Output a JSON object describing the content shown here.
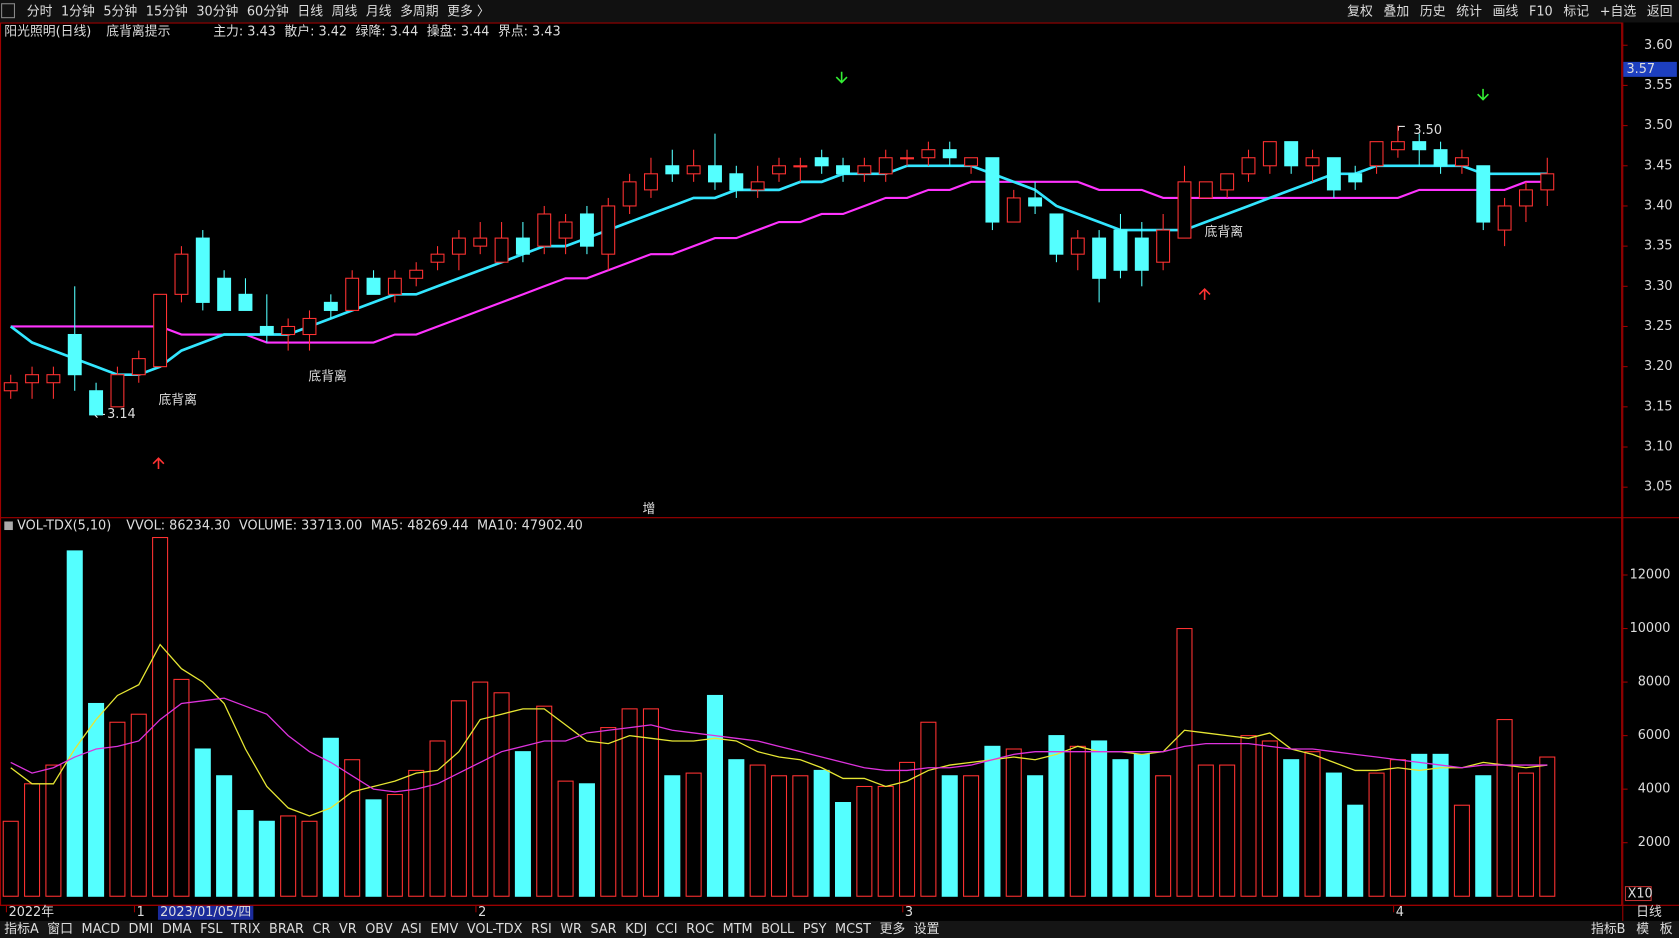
{
  "top_toolbar": {
    "left": [
      {
        "label": "分时"
      },
      {
        "label": "1分钟"
      },
      {
        "label": "5分钟"
      },
      {
        "label": "15分钟"
      },
      {
        "label": "30分钟"
      },
      {
        "label": "60分钟"
      },
      {
        "label": "日线",
        "active": true
      },
      {
        "label": "周线"
      },
      {
        "label": "月线"
      },
      {
        "label": "多周期"
      },
      {
        "label": "更多 〉"
      }
    ],
    "right": [
      {
        "label": "复权"
      },
      {
        "label": "叠加"
      },
      {
        "label": "历史"
      },
      {
        "label": "统计"
      },
      {
        "label": "画线"
      },
      {
        "label": "F10"
      },
      {
        "label": "标记"
      },
      {
        "label": "+自选"
      },
      {
        "label": "返回"
      }
    ]
  },
  "bottom_toolbar": {
    "left": [
      {
        "label": "指标A"
      },
      {
        "label": "窗口"
      },
      {
        "label": "MACD"
      },
      {
        "label": "DMI"
      },
      {
        "label": "DMA"
      },
      {
        "label": "FSL"
      },
      {
        "label": "TRIX"
      },
      {
        "label": "BRAR"
      },
      {
        "label": "CR"
      },
      {
        "label": "VR"
      },
      {
        "label": "OBV"
      },
      {
        "label": "ASI"
      },
      {
        "label": "EMV"
      },
      {
        "label": "VOL-TDX",
        "active": true
      },
      {
        "label": "RSI"
      },
      {
        "label": "WR"
      },
      {
        "label": "SAR"
      },
      {
        "label": "KDJ"
      },
      {
        "label": "CCI"
      },
      {
        "label": "ROC"
      },
      {
        "label": "MTM"
      },
      {
        "label": "BOLL"
      },
      {
        "label": "PSY"
      },
      {
        "label": "MCST"
      },
      {
        "label": "更多"
      },
      {
        "label": "设置"
      }
    ],
    "right": [
      {
        "label": "指标B"
      },
      {
        "label": "模"
      },
      {
        "label": "板"
      }
    ],
    "period": "日线"
  },
  "chart_data": [
    {
      "type": "candlestick",
      "title": "阳光照明(日线)",
      "subtitle": "底背离提示",
      "indicators": [
        {
          "text": "主力: 3.43",
          "color": "#ff3030"
        },
        {
          "text": "散户: 3.42",
          "color": "#ffffff"
        },
        {
          "text": "绿降: 3.44",
          "color": "#33dd33"
        },
        {
          "text": "操盘: 3.44",
          "color": "#44eeee"
        },
        {
          "text": "界点: 3.43",
          "color": "#ff44ff"
        }
      ],
      "categories": [
        "2022年",
        null,
        null,
        null,
        null,
        null,
        "1",
        "2023/01/05/四",
        null,
        null,
        null,
        null,
        null,
        null,
        null,
        null,
        null,
        null,
        null,
        null,
        null,
        null,
        "2",
        null,
        null,
        null,
        null,
        null,
        null,
        null,
        null,
        null,
        null,
        null,
        null,
        null,
        null,
        null,
        null,
        null,
        null,
        null,
        "3",
        null,
        null,
        null,
        null,
        null,
        null,
        null,
        null,
        null,
        null,
        null,
        null,
        null,
        null,
        null,
        null,
        null,
        null,
        null,
        null,
        null,
        null,
        "4",
        null,
        null,
        null,
        null,
        null,
        null,
        null
      ],
      "open": [
        3.17,
        3.18,
        3.18,
        3.24,
        3.17,
        3.15,
        3.19,
        3.2,
        3.29,
        3.36,
        3.31,
        3.29,
        3.25,
        3.24,
        3.24,
        3.28,
        3.27,
        3.31,
        3.29,
        3.31,
        3.33,
        3.34,
        3.35,
        3.33,
        3.36,
        3.35,
        3.36,
        3.39,
        3.34,
        3.4,
        3.42,
        3.45,
        3.44,
        3.45,
        3.44,
        3.42,
        3.44,
        3.45,
        3.46,
        3.45,
        3.44,
        3.44,
        3.46,
        3.46,
        3.47,
        3.45,
        3.46,
        3.38,
        3.41,
        3.39,
        3.34,
        3.36,
        3.37,
        3.36,
        3.33,
        3.36,
        3.41,
        3.42,
        3.44,
        3.45,
        3.48,
        3.45,
        3.46,
        3.44,
        3.45,
        3.47,
        3.48,
        3.47,
        3.45,
        3.45,
        3.37,
        3.4,
        3.42
      ],
      "high": [
        3.19,
        3.2,
        3.2,
        3.3,
        3.18,
        3.2,
        3.22,
        3.29,
        3.35,
        3.37,
        3.32,
        3.31,
        3.29,
        3.26,
        3.27,
        3.29,
        3.32,
        3.32,
        3.32,
        3.33,
        3.35,
        3.37,
        3.38,
        3.38,
        3.38,
        3.4,
        3.39,
        3.4,
        3.41,
        3.44,
        3.46,
        3.47,
        3.47,
        3.49,
        3.45,
        3.45,
        3.46,
        3.46,
        3.47,
        3.46,
        3.46,
        3.47,
        3.47,
        3.48,
        3.48,
        3.46,
        3.46,
        3.42,
        3.43,
        3.39,
        3.37,
        3.37,
        3.39,
        3.38,
        3.39,
        3.45,
        3.43,
        3.44,
        3.47,
        3.48,
        3.48,
        3.47,
        3.46,
        3.45,
        3.48,
        3.5,
        3.49,
        3.48,
        3.47,
        3.45,
        3.41,
        3.43,
        3.46
      ],
      "low": [
        3.16,
        3.16,
        3.16,
        3.17,
        3.14,
        3.15,
        3.18,
        3.2,
        3.28,
        3.27,
        3.27,
        3.27,
        3.23,
        3.22,
        3.22,
        3.26,
        3.27,
        3.29,
        3.28,
        3.3,
        3.32,
        3.32,
        3.34,
        3.33,
        3.33,
        3.34,
        3.34,
        3.34,
        3.32,
        3.39,
        3.41,
        3.43,
        3.43,
        3.42,
        3.41,
        3.41,
        3.43,
        3.43,
        3.44,
        3.43,
        3.43,
        3.43,
        3.45,
        3.45,
        3.45,
        3.44,
        3.37,
        3.38,
        3.39,
        3.33,
        3.32,
        3.28,
        3.31,
        3.3,
        3.32,
        3.36,
        3.41,
        3.41,
        3.43,
        3.44,
        3.44,
        3.43,
        3.41,
        3.42,
        3.44,
        3.46,
        3.45,
        3.44,
        3.44,
        3.37,
        3.35,
        3.38,
        3.4
      ],
      "close": [
        3.18,
        3.19,
        3.19,
        3.19,
        3.14,
        3.19,
        3.21,
        3.29,
        3.34,
        3.28,
        3.27,
        3.27,
        3.24,
        3.25,
        3.26,
        3.27,
        3.31,
        3.29,
        3.31,
        3.32,
        3.34,
        3.36,
        3.36,
        3.36,
        3.34,
        3.39,
        3.38,
        3.35,
        3.4,
        3.43,
        3.44,
        3.44,
        3.45,
        3.43,
        3.42,
        3.43,
        3.45,
        3.45,
        3.45,
        3.44,
        3.45,
        3.46,
        3.46,
        3.47,
        3.46,
        3.46,
        3.38,
        3.41,
        3.4,
        3.34,
        3.36,
        3.31,
        3.32,
        3.32,
        3.37,
        3.43,
        3.43,
        3.44,
        3.46,
        3.48,
        3.45,
        3.46,
        3.42,
        3.43,
        3.48,
        3.48,
        3.47,
        3.45,
        3.46,
        3.38,
        3.4,
        3.42,
        3.44
      ],
      "up_color": "#ff3232",
      "down_color": "#54ffff",
      "lines": [
        {
          "color": "#ff33ff",
          "values": [
            3.25,
            3.25,
            3.25,
            3.25,
            3.25,
            3.25,
            3.25,
            3.25,
            3.24,
            3.24,
            3.24,
            3.24,
            3.23,
            3.23,
            3.23,
            3.23,
            3.23,
            3.23,
            3.24,
            3.24,
            3.25,
            3.26,
            3.27,
            3.28,
            3.29,
            3.3,
            3.31,
            3.31,
            3.32,
            3.33,
            3.34,
            3.34,
            3.35,
            3.36,
            3.36,
            3.37,
            3.38,
            3.38,
            3.39,
            3.39,
            3.4,
            3.41,
            3.41,
            3.42,
            3.42,
            3.43,
            3.43,
            3.43,
            3.43,
            3.43,
            3.43,
            3.42,
            3.42,
            3.42,
            3.41,
            3.41,
            3.41,
            3.41,
            3.41,
            3.41,
            3.41,
            3.41,
            3.41,
            3.41,
            3.41,
            3.41,
            3.42,
            3.42,
            3.42,
            3.42,
            3.42,
            3.43,
            3.43
          ]
        },
        {
          "color": "#33e6ff",
          "values": [
            3.25,
            3.23,
            3.22,
            3.21,
            3.2,
            3.19,
            3.19,
            3.2,
            3.22,
            3.23,
            3.24,
            3.24,
            3.24,
            3.24,
            3.25,
            3.26,
            3.27,
            3.28,
            3.29,
            3.29,
            3.3,
            3.31,
            3.32,
            3.33,
            3.34,
            3.35,
            3.35,
            3.36,
            3.37,
            3.38,
            3.39,
            3.4,
            3.41,
            3.41,
            3.42,
            3.42,
            3.42,
            3.43,
            3.43,
            3.44,
            3.44,
            3.44,
            3.45,
            3.45,
            3.45,
            3.45,
            3.44,
            3.43,
            3.42,
            3.4,
            3.39,
            3.38,
            3.37,
            3.37,
            3.37,
            3.37,
            3.38,
            3.39,
            3.4,
            3.41,
            3.42,
            3.43,
            3.44,
            3.44,
            3.45,
            3.45,
            3.45,
            3.45,
            3.45,
            3.44,
            3.44,
            3.44,
            3.44
          ]
        }
      ],
      "annotations": [
        "3.14",
        "3.50",
        "底背离",
        "底背离",
        "底背离",
        "增"
      ],
      "cursor_price": {
        "value": 3.57,
        "label": "3.57"
      },
      "ylim": [
        3.014,
        3.627
      ],
      "yticks": [
        {
          "value": 3.6,
          "label": "3.60"
        },
        3.55,
        {
          "value": 3.5,
          "label": "3.50"
        },
        3.45,
        {
          "value": 3.4,
          "label": "3.40"
        },
        3.35,
        {
          "value": 3.3,
          "label": "3.30"
        },
        3.25,
        {
          "value": 3.2,
          "label": "3.20"
        },
        3.15,
        {
          "value": 3.1,
          "label": "3.10"
        },
        3.05
      ]
    },
    {
      "type": "bar",
      "title": "VOL-TDX(5,10)",
      "indicators": [
        {
          "text": "VVOL: 86234.30",
          "color": "#ffffff"
        },
        {
          "text": "VOLUME: 33713.00",
          "color": "#ffff33"
        },
        {
          "text": "MA5: 48269.44",
          "color": "#ffff33"
        },
        {
          "text": "MA10: 47902.40",
          "color": "#ff44ff"
        }
      ],
      "values": [
        2800,
        4200,
        4900,
        12900,
        7200,
        6500,
        6800,
        13400,
        8100,
        5500,
        4500,
        3200,
        2800,
        3000,
        2800,
        5900,
        5100,
        3600,
        3800,
        4700,
        5800,
        7300,
        8000,
        7600,
        5400,
        7100,
        4300,
        4200,
        6300,
        7000,
        7000,
        4500,
        4600,
        7500,
        5100,
        4900,
        4500,
        4500,
        4700,
        3500,
        4100,
        4100,
        5000,
        6500,
        4500,
        4500,
        5600,
        5500,
        4500,
        6000,
        5600,
        5800,
        5100,
        5300,
        4500,
        10000,
        4900,
        4900,
        6000,
        5800,
        5100,
        5400,
        4600,
        3400,
        4600,
        5100,
        5300,
        5300,
        3400,
        4500,
        6600,
        4600,
        5200
      ],
      "lines": [
        {
          "color": "#e6e633",
          "values": [
            4800,
            4200,
            4200,
            5500,
            6600,
            7500,
            7900,
            9400,
            8500,
            8000,
            7200,
            5500,
            4100,
            3300,
            3000,
            3300,
            3900,
            4100,
            4300,
            4600,
            4700,
            5400,
            6600,
            6800,
            7000,
            7000,
            6400,
            5800,
            5700,
            6000,
            5900,
            5800,
            5800,
            5900,
            5800,
            5400,
            5200,
            5100,
            4800,
            4400,
            4400,
            4100,
            4300,
            4700,
            4900,
            5000,
            5100,
            5200,
            5100,
            5300,
            5600,
            5400,
            5400,
            5300,
            5400,
            6200,
            6100,
            6000,
            5900,
            6100,
            5500,
            5300,
            5000,
            4700,
            4700,
            4800,
            4700,
            4800,
            4800,
            5000,
            4900,
            4800,
            4900
          ]
        },
        {
          "color": "#dd33dd",
          "values": [
            5000,
            4600,
            4800,
            5200,
            5500,
            5600,
            5800,
            6600,
            7200,
            7300,
            7400,
            7100,
            6800,
            6000,
            5400,
            5000,
            4500,
            4000,
            3900,
            4000,
            4200,
            4600,
            5000,
            5400,
            5600,
            5800,
            5800,
            6100,
            6200,
            6300,
            6400,
            6200,
            6100,
            6000,
            5900,
            5800,
            5600,
            5400,
            5200,
            5000,
            4800,
            4700,
            4700,
            4800,
            4800,
            4900,
            5100,
            5300,
            5400,
            5400,
            5400,
            5400,
            5400,
            5400,
            5400,
            5600,
            5700,
            5700,
            5700,
            5600,
            5500,
            5500,
            5400,
            5300,
            5200,
            5100,
            5000,
            4900,
            4800,
            4900,
            4900,
            4900,
            4900
          ]
        }
      ],
      "unit_label": "X10",
      "ylim": [
        0,
        13600
      ],
      "yticks": [
        2000,
        4000,
        6000,
        8000,
        10000,
        12000
      ]
    }
  ]
}
